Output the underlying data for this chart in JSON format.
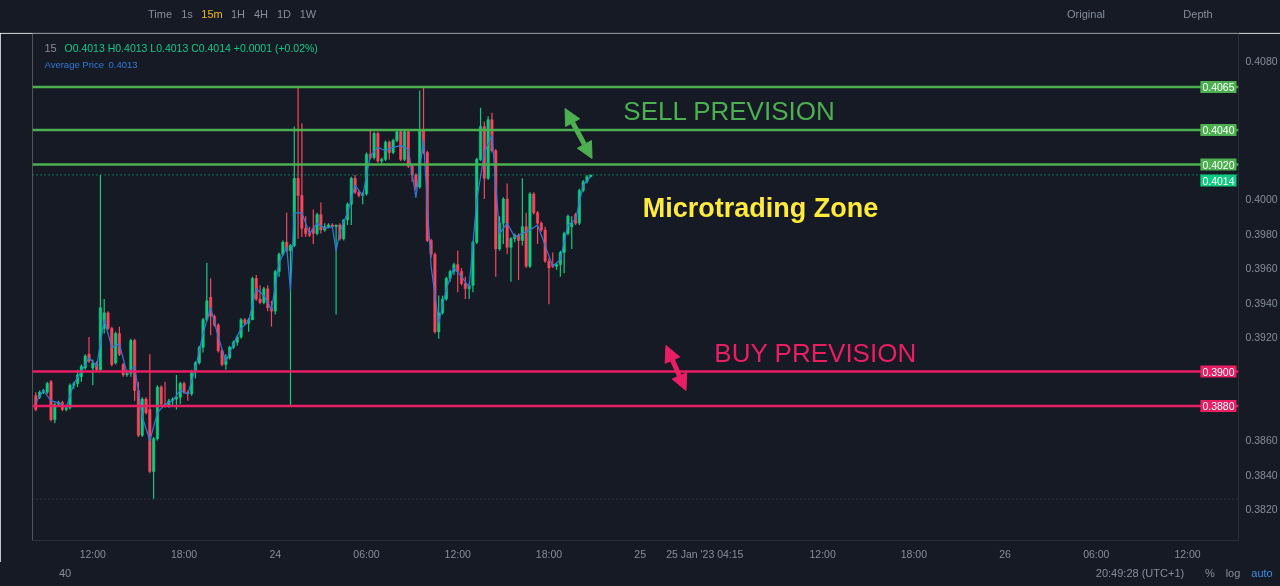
{
  "chart_data": {
    "type": "candlestick",
    "xlim": [
      "2023-01-23T08:02",
      "2023-01-26T15:21"
    ],
    "ylim": [
      0.3802,
      0.4096
    ],
    "xticks": [
      {
        "value": "2023-01-23T12:00",
        "label": "12:00"
      },
      {
        "value": "2023-01-23T18:00",
        "label": "18:00"
      },
      {
        "value": "2023-01-24T00:00",
        "label": "24"
      },
      {
        "value": "2023-01-24T06:00",
        "label": "06:00"
      },
      {
        "value": "2023-01-24T12:00",
        "label": "12:00"
      },
      {
        "value": "2023-01-24T18:00",
        "label": "18:00"
      },
      {
        "value": "2023-01-25T00:00",
        "label": "25"
      },
      {
        "value": "2023-01-25T04:15",
        "label": "25 Jan '23 04:15"
      },
      {
        "value": "2023-01-25T12:00",
        "label": "12:00"
      },
      {
        "value": "2023-01-25T18:00",
        "label": "18:00"
      },
      {
        "value": "2023-01-26T00:00",
        "label": "26"
      },
      {
        "value": "2023-01-26T06:00",
        "label": "06:00"
      },
      {
        "value": "2023-01-26T12:00",
        "label": "12:00"
      }
    ],
    "yticks": [
      {
        "value": 0.382,
        "label": "0.3820"
      },
      {
        "value": 0.384,
        "label": "0.3840"
      },
      {
        "value": 0.386,
        "label": "0.3860"
      },
      {
        "value": 0.392,
        "label": "0.3920"
      },
      {
        "value": 0.394,
        "label": "0.3940"
      },
      {
        "value": 0.396,
        "label": "0.3960"
      },
      {
        "value": 0.398,
        "label": "0.3980"
      },
      {
        "value": 0.4,
        "label": "0.4000"
      },
      {
        "value": 0.408,
        "label": "0.4080"
      }
    ],
    "legend": "top left",
    "series": [
      {
        "x": [
          "2023-01-23T08:15",
          "2023-01-23T08:30",
          "2023-01-23T08:45",
          "2023-01-23T09:00",
          "2023-01-23T09:15",
          "2023-01-23T09:30",
          "2023-01-23T09:45",
          "2023-01-23T10:00",
          "2023-01-23T10:15",
          "2023-01-23T10:30",
          "2023-01-23T10:45",
          "2023-01-23T11:00",
          "2023-01-23T11:15",
          "2023-01-23T11:30",
          "2023-01-23T11:45",
          "2023-01-23T12:00",
          "2023-01-23T12:15",
          "2023-01-23T12:30",
          "2023-01-23T12:45",
          "2023-01-23T13:00",
          "2023-01-23T13:15",
          "2023-01-23T13:30",
          "2023-01-23T13:45",
          "2023-01-23T14:00",
          "2023-01-23T14:15",
          "2023-01-23T14:30",
          "2023-01-23T14:45",
          "2023-01-23T15:00",
          "2023-01-23T15:15",
          "2023-01-23T15:30",
          "2023-01-23T15:45",
          "2023-01-23T16:00",
          "2023-01-23T16:15",
          "2023-01-23T16:30",
          "2023-01-23T16:45",
          "2023-01-23T17:00",
          "2023-01-23T17:15",
          "2023-01-23T17:30",
          "2023-01-23T17:45",
          "2023-01-23T18:00",
          "2023-01-23T18:15",
          "2023-01-23T18:30",
          "2023-01-23T18:45",
          "2023-01-23T19:00",
          "2023-01-23T19:15",
          "2023-01-23T19:30",
          "2023-01-23T19:45",
          "2023-01-23T20:00",
          "2023-01-23T20:15",
          "2023-01-23T20:30",
          "2023-01-23T20:45",
          "2023-01-23T21:00",
          "2023-01-23T21:15",
          "2023-01-23T21:30",
          "2023-01-23T21:45",
          "2023-01-23T22:00",
          "2023-01-23T22:15",
          "2023-01-23T22:30",
          "2023-01-23T22:45",
          "2023-01-23T23:00",
          "2023-01-23T23:15",
          "2023-01-23T23:30",
          "2023-01-23T23:45",
          "2023-01-24T00:00",
          "2023-01-24T00:15",
          "2023-01-24T00:30",
          "2023-01-24T00:45",
          "2023-01-24T01:00",
          "2023-01-24T01:15",
          "2023-01-24T01:30",
          "2023-01-24T01:45",
          "2023-01-24T02:00",
          "2023-01-24T02:15",
          "2023-01-24T02:30",
          "2023-01-24T02:45",
          "2023-01-24T03:00",
          "2023-01-24T03:15",
          "2023-01-24T03:30",
          "2023-01-24T03:45",
          "2023-01-24T04:00",
          "2023-01-24T04:15",
          "2023-01-24T04:30",
          "2023-01-24T04:45",
          "2023-01-24T05:00",
          "2023-01-24T05:15",
          "2023-01-24T05:30",
          "2023-01-24T05:45",
          "2023-01-24T06:00",
          "2023-01-24T06:15",
          "2023-01-24T06:30",
          "2023-01-24T06:45",
          "2023-01-24T07:00",
          "2023-01-24T07:15",
          "2023-01-24T07:30",
          "2023-01-24T07:45",
          "2023-01-24T08:00",
          "2023-01-24T08:15",
          "2023-01-24T08:30",
          "2023-01-24T08:45",
          "2023-01-24T09:00",
          "2023-01-24T09:15",
          "2023-01-24T09:30",
          "2023-01-24T09:45",
          "2023-01-24T10:00",
          "2023-01-24T10:15",
          "2023-01-24T10:30",
          "2023-01-24T10:45",
          "2023-01-24T11:00",
          "2023-01-24T11:15",
          "2023-01-24T11:30",
          "2023-01-24T11:45",
          "2023-01-24T12:00",
          "2023-01-24T12:15",
          "2023-01-24T12:30",
          "2023-01-24T12:45",
          "2023-01-24T13:00",
          "2023-01-24T13:15",
          "2023-01-24T13:30",
          "2023-01-24T13:45",
          "2023-01-24T14:00",
          "2023-01-24T14:15",
          "2023-01-24T14:30",
          "2023-01-24T14:45",
          "2023-01-24T15:00",
          "2023-01-24T15:15",
          "2023-01-24T15:30",
          "2023-01-24T15:45",
          "2023-01-24T16:00",
          "2023-01-24T16:15",
          "2023-01-24T16:30",
          "2023-01-24T16:45",
          "2023-01-24T17:00",
          "2023-01-24T17:15",
          "2023-01-24T17:30",
          "2023-01-24T17:45",
          "2023-01-24T18:00",
          "2023-01-24T18:15",
          "2023-01-24T18:30",
          "2023-01-24T18:45",
          "2023-01-24T19:00",
          "2023-01-24T19:15",
          "2023-01-24T19:30",
          "2023-01-24T19:45",
          "2023-01-24T20:00",
          "2023-01-24T20:15",
          "2023-01-24T20:30",
          "2023-01-24T20:45"
        ],
        "ohlc": [
          [
            0.3886,
            0.3888,
            0.3877,
            0.3878
          ],
          [
            0.3885,
            0.3889,
            0.3884,
            0.3888
          ],
          [
            0.3888,
            0.389,
            0.3887,
            0.3889
          ],
          [
            0.3888,
            0.3894,
            0.3887,
            0.3893
          ],
          [
            0.3894,
            0.3895,
            0.3871,
            0.3872
          ],
          [
            0.3872,
            0.3882,
            0.387,
            0.3881
          ],
          [
            0.3881,
            0.3883,
            0.388,
            0.3882
          ],
          [
            0.3882,
            0.3883,
            0.3877,
            0.3878
          ],
          [
            0.3878,
            0.388,
            0.3877,
            0.3879
          ],
          [
            0.3879,
            0.3893,
            0.3878,
            0.3892
          ],
          [
            0.3892,
            0.3894,
            0.389,
            0.3893
          ],
          [
            0.3893,
            0.3901,
            0.3891,
            0.3898
          ],
          [
            0.3897,
            0.3904,
            0.3894,
            0.3903
          ],
          [
            0.3902,
            0.391,
            0.3901,
            0.3909
          ],
          [
            0.391,
            0.392,
            0.3905,
            0.3906
          ],
          [
            0.3902,
            0.3907,
            0.3892,
            0.3905
          ],
          [
            0.3905,
            0.3906,
            0.39,
            0.3901
          ],
          [
            0.3901,
            0.4014,
            0.39,
            0.3937
          ],
          [
            0.3925,
            0.3942,
            0.3922,
            0.3934
          ],
          [
            0.3934,
            0.3935,
            0.3924,
            0.3925
          ],
          [
            0.3925,
            0.3926,
            0.3903,
            0.3904
          ],
          [
            0.3905,
            0.3923,
            0.3904,
            0.3922
          ],
          [
            0.3922,
            0.3926,
            0.3909,
            0.391
          ],
          [
            0.3904,
            0.3905,
            0.3897,
            0.3898
          ],
          [
            0.3898,
            0.3901,
            0.3897,
            0.3899
          ],
          [
            0.3899,
            0.3919,
            0.3897,
            0.3918
          ],
          [
            0.3918,
            0.3919,
            0.3883,
            0.3889
          ],
          [
            0.3889,
            0.3894,
            0.3862,
            0.3863
          ],
          [
            0.3863,
            0.3885,
            0.3862,
            0.3884
          ],
          [
            0.3884,
            0.3885,
            0.3875,
            0.3876
          ],
          [
            0.3878,
            0.391,
            0.3841,
            0.3842
          ],
          [
            0.3842,
            0.3862,
            0.3826,
            0.3861
          ],
          [
            0.3861,
            0.3892,
            0.386,
            0.3891
          ],
          [
            0.3891,
            0.3892,
            0.388,
            0.3881
          ],
          [
            0.3881,
            0.3894,
            0.3879,
            0.388
          ],
          [
            0.388,
            0.3884,
            0.3879,
            0.3883
          ],
          [
            0.3883,
            0.3885,
            0.388,
            0.3884
          ],
          [
            0.3884,
            0.3898,
            0.3878,
            0.3885
          ],
          [
            0.3885,
            0.3894,
            0.3881,
            0.3893
          ],
          [
            0.3893,
            0.3894,
            0.3887,
            0.3888
          ],
          [
            0.3888,
            0.3889,
            0.3883,
            0.3887
          ],
          [
            0.3887,
            0.3901,
            0.3886,
            0.39
          ],
          [
            0.39,
            0.3906,
            0.3896,
            0.3905
          ],
          [
            0.3905,
            0.3915,
            0.3904,
            0.3914
          ],
          [
            0.3914,
            0.3931,
            0.3911,
            0.393
          ],
          [
            0.393,
            0.3963,
            0.3929,
            0.3941
          ],
          [
            0.3943,
            0.3954,
            0.3921,
            0.3932
          ],
          [
            0.3932,
            0.3933,
            0.3926,
            0.3927
          ],
          [
            0.3927,
            0.3928,
            0.3911,
            0.3912
          ],
          [
            0.3912,
            0.3913,
            0.3903,
            0.3904
          ],
          [
            0.3904,
            0.391,
            0.3901,
            0.3908
          ],
          [
            0.3908,
            0.3915,
            0.3907,
            0.3914
          ],
          [
            0.3914,
            0.3918,
            0.3913,
            0.3917
          ],
          [
            0.3917,
            0.3921,
            0.3915,
            0.392
          ],
          [
            0.392,
            0.3931,
            0.3919,
            0.393
          ],
          [
            0.393,
            0.3931,
            0.3927,
            0.3928
          ],
          [
            0.3928,
            0.3931,
            0.3923,
            0.393
          ],
          [
            0.393,
            0.3955,
            0.393,
            0.3954
          ],
          [
            0.3954,
            0.3956,
            0.3941,
            0.3942
          ],
          [
            0.3942,
            0.395,
            0.3939,
            0.394
          ],
          [
            0.394,
            0.3949,
            0.3939,
            0.3948
          ],
          [
            0.3948,
            0.395,
            0.3935,
            0.3937
          ],
          [
            0.3937,
            0.3941,
            0.3926,
            0.3935
          ],
          [
            0.3935,
            0.3959,
            0.3933,
            0.3958
          ],
          [
            0.3958,
            0.3969,
            0.3955,
            0.3968
          ],
          [
            0.3968,
            0.3976,
            0.3967,
            0.3975
          ],
          [
            0.3975,
            0.3992,
            0.3969,
            0.397
          ],
          [
            0.397,
            0.3974,
            0.388,
            0.3973
          ],
          [
            0.3973,
            0.4042,
            0.3972,
            0.4012
          ],
          [
            0.4012,
            0.4065,
            0.3977,
            0.4002
          ],
          [
            0.4002,
            0.4044,
            0.3978,
            0.3983
          ],
          [
            0.3983,
            0.399,
            0.3978,
            0.398
          ],
          [
            0.398,
            0.3984,
            0.3978,
            0.3979
          ],
          [
            0.3983,
            0.3994,
            0.3974,
            0.398
          ],
          [
            0.398,
            0.3992,
            0.3979,
            0.3991
          ],
          [
            0.3991,
            0.3998,
            0.398,
            0.3982
          ],
          [
            0.3982,
            0.3986,
            0.3981,
            0.3984
          ],
          [
            0.3984,
            0.3986,
            0.3983,
            0.3985
          ],
          [
            0.3985,
            0.3986,
            0.3983,
            0.3984
          ],
          [
            0.3984,
            0.3985,
            0.3933,
            0.3985
          ],
          [
            0.3985,
            0.3986,
            0.3976,
            0.3977
          ],
          [
            0.3977,
            0.3988,
            0.3976,
            0.3988
          ],
          [
            0.3988,
            0.3998,
            0.3985,
            0.3997
          ],
          [
            0.3997,
            0.4013,
            0.3985,
            0.4012
          ],
          [
            0.4012,
            0.4014,
            0.4003,
            0.4004
          ],
          [
            0.4004,
            0.4005,
            0.4001,
            0.4002
          ],
          [
            0.4002,
            0.4004,
            0.3997,
            0.4003
          ],
          [
            0.4003,
            0.4027,
            0.4002,
            0.4026
          ],
          [
            0.4026,
            0.404,
            0.4023,
            0.4024
          ],
          [
            0.4024,
            0.4039,
            0.4023,
            0.4038
          ],
          [
            0.4038,
            0.4039,
            0.4021,
            0.4022
          ],
          [
            0.4022,
            0.4024,
            0.402,
            0.4023
          ],
          [
            0.4023,
            0.4034,
            0.4022,
            0.4033
          ],
          [
            0.4033,
            0.4034,
            0.4023,
            0.4027
          ],
          [
            0.4027,
            0.4035,
            0.4026,
            0.4034
          ],
          [
            0.4034,
            0.404,
            0.4033,
            0.4039
          ],
          [
            0.4039,
            0.404,
            0.4022,
            0.4023
          ],
          [
            0.4023,
            0.404,
            0.4022,
            0.4039
          ],
          [
            0.4039,
            0.404,
            0.4018,
            0.4019
          ],
          [
            0.4019,
            0.402,
            0.401,
            0.4014
          ],
          [
            0.4014,
            0.4015,
            0.4005,
            0.4007
          ],
          [
            0.4007,
            0.4063,
            0.4006,
            0.404
          ],
          [
            0.404,
            0.4065,
            0.4026,
            0.4027
          ],
          [
            0.4027,
            0.4028,
            0.3975,
            0.3976
          ],
          [
            0.3976,
            0.3977,
            0.3966,
            0.3968
          ],
          [
            0.3968,
            0.3969,
            0.3922,
            0.3923
          ],
          [
            0.3923,
            0.3944,
            0.3919,
            0.3934
          ],
          [
            0.3934,
            0.3944,
            0.3933,
            0.3942
          ],
          [
            0.3942,
            0.3955,
            0.3941,
            0.3954
          ],
          [
            0.3954,
            0.3959,
            0.3952,
            0.3958
          ],
          [
            0.3958,
            0.3963,
            0.3956,
            0.3962
          ],
          [
            0.3962,
            0.397,
            0.3946,
            0.3958
          ],
          [
            0.3958,
            0.396,
            0.395,
            0.3951
          ],
          [
            0.3951,
            0.3955,
            0.3942,
            0.3948
          ],
          [
            0.3948,
            0.3951,
            0.3942,
            0.395
          ],
          [
            0.395,
            0.3976,
            0.3946,
            0.3975
          ],
          [
            0.3975,
            0.4024,
            0.3974,
            0.4023
          ],
          [
            0.4023,
            0.4053,
            0.4022,
            0.4042
          ],
          [
            0.4042,
            0.4045,
            0.4,
            0.4012
          ],
          [
            0.4012,
            0.4048,
            0.4011,
            0.4046
          ],
          [
            0.4046,
            0.405,
            0.4027,
            0.4028
          ],
          [
            0.4028,
            0.4029,
            0.3955,
            0.3971
          ],
          [
            0.3971,
            0.399,
            0.397,
            0.3986
          ],
          [
            0.3986,
            0.4001,
            0.3974,
            0.4
          ],
          [
            0.4,
            0.4009,
            0.3968,
            0.3972
          ],
          [
            0.3972,
            0.3978,
            0.3952,
            0.3977
          ],
          [
            0.3977,
            0.398,
            0.3975,
            0.3979
          ],
          [
            0.3979,
            0.398,
            0.3953,
            0.3976
          ],
          [
            0.3976,
            0.4012,
            0.3973,
            0.3984
          ],
          [
            0.3984,
            0.3992,
            0.396,
            0.3961
          ],
          [
            0.3961,
            0.4004,
            0.396,
            0.4003
          ],
          [
            0.4003,
            0.4004,
            0.3991,
            0.3992
          ],
          [
            0.3992,
            0.3993,
            0.3974,
            0.3986
          ],
          [
            0.3986,
            0.3987,
            0.3981,
            0.3982
          ],
          [
            0.3982,
            0.3984,
            0.3963,
            0.3964
          ],
          [
            0.3964,
            0.3966,
            0.3939,
            0.396
          ],
          [
            0.3962,
            0.3969,
            0.396,
            0.3961
          ],
          [
            0.3961,
            0.3963,
            0.3959,
            0.3962
          ],
          [
            0.3962,
            0.397,
            0.3955,
            0.3969
          ],
          [
            0.3969,
            0.3981,
            0.3957,
            0.398
          ],
          [
            0.398,
            0.3991,
            0.3979,
            0.399
          ],
          [
            0.3984,
            0.399,
            0.3971,
            0.3986
          ],
          [
            0.3991,
            0.3992,
            0.3985,
            0.3986
          ],
          [
            0.3986,
            0.4006,
            0.3985,
            0.4005
          ],
          [
            0.4005,
            0.4011,
            0.4004,
            0.401
          ],
          [
            0.401,
            0.4014,
            0.4009,
            0.4013
          ],
          [
            0.4013,
            0.4014,
            0.4013,
            0.4014
          ]
        ],
        "colors": [
          "#f6465d",
          "#0ecb81",
          "#0ecb81",
          "#0ecb81",
          "#f6465d",
          "#0ecb81",
          "#0ecb81",
          "#f6465d",
          "#0ecb81",
          "#0ecb81",
          "#0ecb81",
          "#0ecb81",
          "#0ecb81",
          "#0ecb81",
          "#f6465d",
          "#0ecb81",
          "#f6465d",
          "#0ecb81",
          "#0ecb81",
          "#f6465d",
          "#f6465d",
          "#0ecb81",
          "#f6465d",
          "#f6465d",
          "#0ecb81",
          "#0ecb81",
          "#f6465d",
          "#f6465d",
          "#0ecb81",
          "#f6465d",
          "#f6465d",
          "#0ecb81",
          "#0ecb81",
          "#f6465d",
          "#f6465d",
          "#0ecb81",
          "#0ecb81",
          "#0ecb81",
          "#0ecb81",
          "#f6465d",
          "#f6465d",
          "#0ecb81",
          "#0ecb81",
          "#0ecb81",
          "#0ecb81",
          "#0ecb81",
          "#f6465d",
          "#f6465d",
          "#f6465d",
          "#f6465d",
          "#0ecb81",
          "#0ecb81",
          "#0ecb81",
          "#0ecb81",
          "#0ecb81",
          "#f6465d",
          "#0ecb81",
          "#0ecb81",
          "#f6465d",
          "#f6465d",
          "#0ecb81",
          "#f6465d",
          "#f6465d",
          "#0ecb81",
          "#0ecb81",
          "#0ecb81",
          "#f6465d",
          "#0ecb81",
          "#0ecb81",
          "#f6465d",
          "#f6465d",
          "#f6465d",
          "#f6465d",
          "#f6465d",
          "#0ecb81",
          "#f6465d",
          "#0ecb81",
          "#0ecb81",
          "#f6465d",
          "#0ecb81",
          "#f6465d",
          "#0ecb81",
          "#0ecb81",
          "#0ecb81",
          "#f6465d",
          "#f6465d",
          "#0ecb81",
          "#0ecb81",
          "#f6465d",
          "#0ecb81",
          "#f6465d",
          "#0ecb81",
          "#0ecb81",
          "#f6465d",
          "#0ecb81",
          "#0ecb81",
          "#f6465d",
          "#0ecb81",
          "#f6465d",
          "#f6465d",
          "#f6465d",
          "#0ecb81",
          "#f6465d",
          "#f6465d",
          "#f6465d",
          "#f6465d",
          "#0ecb81",
          "#0ecb81",
          "#0ecb81",
          "#0ecb81",
          "#0ecb81",
          "#f6465d",
          "#f6465d",
          "#f6465d",
          "#0ecb81",
          "#0ecb81",
          "#0ecb81",
          "#0ecb81",
          "#f6465d",
          "#0ecb81",
          "#f6465d",
          "#f6465d",
          "#0ecb81",
          "#0ecb81",
          "#f6465d",
          "#0ecb81",
          "#0ecb81",
          "#f6465d",
          "#0ecb81",
          "#f6465d",
          "#0ecb81",
          "#f6465d",
          "#f6465d",
          "#f6465d",
          "#f6465d",
          "#f6465d",
          "#f6465d",
          "#0ecb81",
          "#0ecb81",
          "#0ecb81",
          "#0ecb81",
          "#0ecb81",
          "#f6465d",
          "#0ecb81",
          "#0ecb81",
          "#0ecb81",
          "#0ecb81"
        ]
      },
      {
        "type": "line",
        "name": "Average Price",
        "color": "#3179d8",
        "x": [
          "2023-01-23T08:15",
          "2023-01-23T08:45",
          "2023-01-23T09:15",
          "2023-01-23T09:45",
          "2023-01-23T10:15",
          "2023-01-23T10:45",
          "2023-01-23T11:15",
          "2023-01-23T11:45",
          "2023-01-23T12:15",
          "2023-01-23T12:45",
          "2023-01-23T13:15",
          "2023-01-23T13:45",
          "2023-01-23T14:15",
          "2023-01-23T14:45",
          "2023-01-23T15:15",
          "2023-01-23T15:45",
          "2023-01-23T16:15",
          "2023-01-23T16:45",
          "2023-01-23T17:15",
          "2023-01-23T17:45",
          "2023-01-23T18:15",
          "2023-01-23T18:45",
          "2023-01-23T19:15",
          "2023-01-23T19:45",
          "2023-01-23T20:15",
          "2023-01-23T20:45",
          "2023-01-23T21:15",
          "2023-01-23T21:45",
          "2023-01-23T22:15",
          "2023-01-23T22:45",
          "2023-01-23T23:15",
          "2023-01-23T23:45",
          "2023-01-24T00:15",
          "2023-01-24T00:45",
          "2023-01-24T01:00",
          "2023-01-24T01:15",
          "2023-01-24T01:45",
          "2023-01-24T02:15",
          "2023-01-24T02:45",
          "2023-01-24T03:15",
          "2023-01-24T03:45",
          "2023-01-24T04:00",
          "2023-01-24T04:15",
          "2023-01-24T04:45",
          "2023-01-24T05:15",
          "2023-01-24T05:45",
          "2023-01-24T06:15",
          "2023-01-24T06:45",
          "2023-01-24T07:15",
          "2023-01-24T07:45",
          "2023-01-24T08:15",
          "2023-01-24T08:45",
          "2023-01-24T09:15",
          "2023-01-24T09:45",
          "2023-01-24T10:15",
          "2023-01-24T10:45",
          "2023-01-24T11:15",
          "2023-01-24T11:45",
          "2023-01-24T12:15",
          "2023-01-24T12:45",
          "2023-01-24T13:15",
          "2023-01-24T13:45",
          "2023-01-24T14:15",
          "2023-01-24T14:45",
          "2023-01-24T15:15",
          "2023-01-24T15:45",
          "2023-01-24T16:15",
          "2023-01-24T16:45",
          "2023-01-24T17:15",
          "2023-01-24T17:45",
          "2023-01-24T18:15",
          "2023-01-24T18:45",
          "2023-01-24T19:15",
          "2023-01-24T19:45",
          "2023-01-24T20:15",
          "2023-01-24T20:45"
        ],
        "values": [
          0.3882,
          0.3889,
          0.3883,
          0.3882,
          0.3879,
          0.3893,
          0.39,
          0.3908,
          0.3903,
          0.393,
          0.3914,
          0.3916,
          0.3899,
          0.3903,
          0.3874,
          0.386,
          0.3876,
          0.3881,
          0.3883,
          0.3889,
          0.3887,
          0.3902,
          0.3922,
          0.3937,
          0.392,
          0.3906,
          0.3916,
          0.3925,
          0.3929,
          0.3948,
          0.3944,
          0.3936,
          0.3963,
          0.3972,
          0.3947,
          0.3992,
          0.3992,
          0.398,
          0.3986,
          0.3983,
          0.3984,
          0.397,
          0.3981,
          0.3992,
          0.4008,
          0.4002,
          0.4025,
          0.403,
          0.4028,
          0.403,
          0.4031,
          0.4029,
          0.4001,
          0.4034,
          0.3961,
          0.3928,
          0.3948,
          0.396,
          0.3955,
          0.3949,
          0.3999,
          0.4027,
          0.4037,
          0.398,
          0.3986,
          0.3978,
          0.398,
          0.3982,
          0.3985,
          0.3973,
          0.3961,
          0.3965,
          0.3985,
          0.3988,
          0.4008,
          0.4013
        ]
      }
    ],
    "ref_lines": [
      {
        "axis": "y",
        "value": 0.4065,
        "label": "0.4065",
        "color": "#4caf50"
      },
      {
        "axis": "y",
        "value": 0.404,
        "label": "0.4040",
        "color": "#4caf50"
      },
      {
        "axis": "y",
        "value": 0.402,
        "label": "0.4020",
        "color": "#4caf50"
      },
      {
        "axis": "y",
        "value": 0.4014,
        "label": "0.4014",
        "color": "#0ecb81",
        "line_style": "dotted"
      },
      {
        "axis": "y",
        "value": 0.39,
        "label": "0.3900",
        "color": "#e91e63"
      },
      {
        "axis": "y",
        "value": 0.388,
        "label": "0.3880",
        "color": "#e91e63"
      },
      {
        "axis": "y",
        "value": 0.3826,
        "label": null,
        "color": "#4a4e5a",
        "line_style": "dotted"
      }
    ],
    "annotations": [
      "15",
      "O0.4013 H0.4013 L0.4013 C0.4014 +0.0001 (+0.02%)",
      "0.4013",
      "SELL PREVISION",
      "Microtrading Zone",
      "BUY PREVISION",
      "Time",
      "1s",
      "15m",
      "1H",
      "4H",
      "1D",
      "1W",
      "Original",
      "Depth",
      "40",
      "20:49:28 (UTC+1)",
      "%",
      "log",
      "auto"
    ]
  }
}
